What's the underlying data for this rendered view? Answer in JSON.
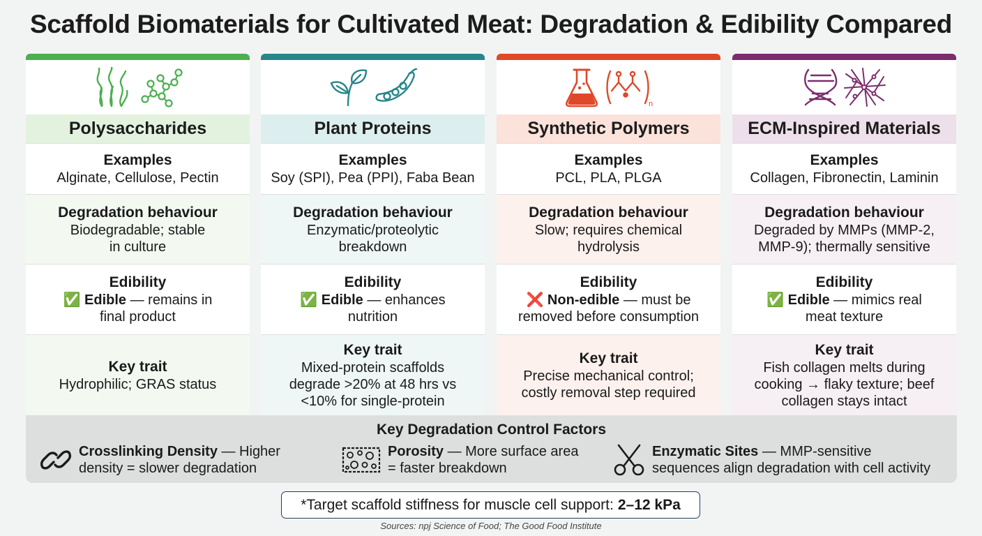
{
  "title": "Scaffold Biomaterials for Cultivated Meat: Degradation & Edibility Compared",
  "columns": [
    {
      "name": "Polysaccharides",
      "accent": "#4caf50",
      "tint": "#e3f2df",
      "section_tint": "#f3f9f1",
      "icons": [
        "seaweed-icon",
        "molecule-icon"
      ],
      "examples_label": "Examples",
      "examples": "Alginate, Cellulose, Pectin",
      "degradation_label": "Degradation behaviour",
      "degradation_line1": "Biodegradable; stable",
      "degradation_line2": "in culture",
      "edibility_label": "Edibility",
      "edibility_mark": "✅",
      "edibility_status": "Edible",
      "edibility_line1": " — remains in",
      "edibility_line2": "final product",
      "trait_label": "Key trait",
      "trait_line1": "Hydrophilic; GRAS status",
      "trait_line2": "",
      "trait_line3": ""
    },
    {
      "name": "Plant Proteins",
      "accent": "#26868a",
      "tint": "#dcefee",
      "section_tint": "#eef7f6",
      "icons": [
        "leaf-sprout-icon",
        "pea-pod-icon"
      ],
      "examples_label": "Examples",
      "examples": "Soy (SPI), Pea (PPI), Faba Bean",
      "degradation_label": "Degradation behaviour",
      "degradation_line1": "Enzymatic/proteolytic",
      "degradation_line2": "breakdown",
      "edibility_label": "Edibility",
      "edibility_mark": "✅",
      "edibility_status": "Edible",
      "edibility_line1": " — enhances",
      "edibility_line2": "nutrition",
      "trait_label": "Key trait",
      "trait_line1": "Mixed-protein scaffolds",
      "trait_line2": "degrade >20% at 48 hrs vs",
      "trait_line3": "<10% for single-protein"
    },
    {
      "name": "Synthetic Polymers",
      "accent": "#e0482a",
      "tint": "#fbe2da",
      "section_tint": "#fdf1ed",
      "icons": [
        "flask-icon",
        "polymer-chain-icon"
      ],
      "examples_label": "Examples",
      "examples": "PCL, PLA, PLGA",
      "degradation_label": "Degradation behaviour",
      "degradation_line1": "Slow; requires chemical",
      "degradation_line2": "hydrolysis",
      "edibility_label": "Edibility",
      "edibility_mark": "❌",
      "edibility_status": "Non-edible",
      "edibility_line1": " — must be",
      "edibility_line2": "removed before consumption",
      "trait_label": "Key trait",
      "trait_line1": "Precise mechanical control;",
      "trait_line2": "costly removal step required",
      "trait_line3": ""
    },
    {
      "name": "ECM-Inspired Materials",
      "accent": "#7b2d6e",
      "tint": "#ede0ea",
      "section_tint": "#f6eff4",
      "icons": [
        "dna-icon",
        "fiber-network-icon"
      ],
      "examples_label": "Examples",
      "examples": "Collagen, Fibronectin, Laminin",
      "degradation_label": "Degradation behaviour",
      "degradation_line1": "Degraded by MMPs (MMP-2,",
      "degradation_line2": "MMP-9); thermally sensitive",
      "edibility_label": "Edibility",
      "edibility_mark": "✅",
      "edibility_status": "Edible",
      "edibility_line1": " — mimics real",
      "edibility_line2": "meat texture",
      "trait_label": "Key trait",
      "trait_line1": "Fish collagen melts during",
      "trait_line2": "cooking → flaky texture; beef",
      "trait_line3": "collagen stays intact"
    }
  ],
  "factors": {
    "title": "Key Degradation Control Factors",
    "items": [
      {
        "icon": "chain-link-icon",
        "name": "Crosslinking Density",
        "line1": " — Higher",
        "line2": "density = slower degradation"
      },
      {
        "icon": "porous-sponge-icon",
        "name": "Porosity",
        "line1": " — More surface area",
        "line2": "= faster breakdown"
      },
      {
        "icon": "scissors-icon",
        "name": "Enzymatic Sites",
        "line1": " — MMP-sensitive",
        "line2": "sequences align degradation with cell activity"
      }
    ]
  },
  "note": {
    "text": "*Target scaffold stiffness for muscle cell support:",
    "value": "2–12 kPa"
  },
  "sources": "Sources: npj Science of Food; The Good Food Institute"
}
